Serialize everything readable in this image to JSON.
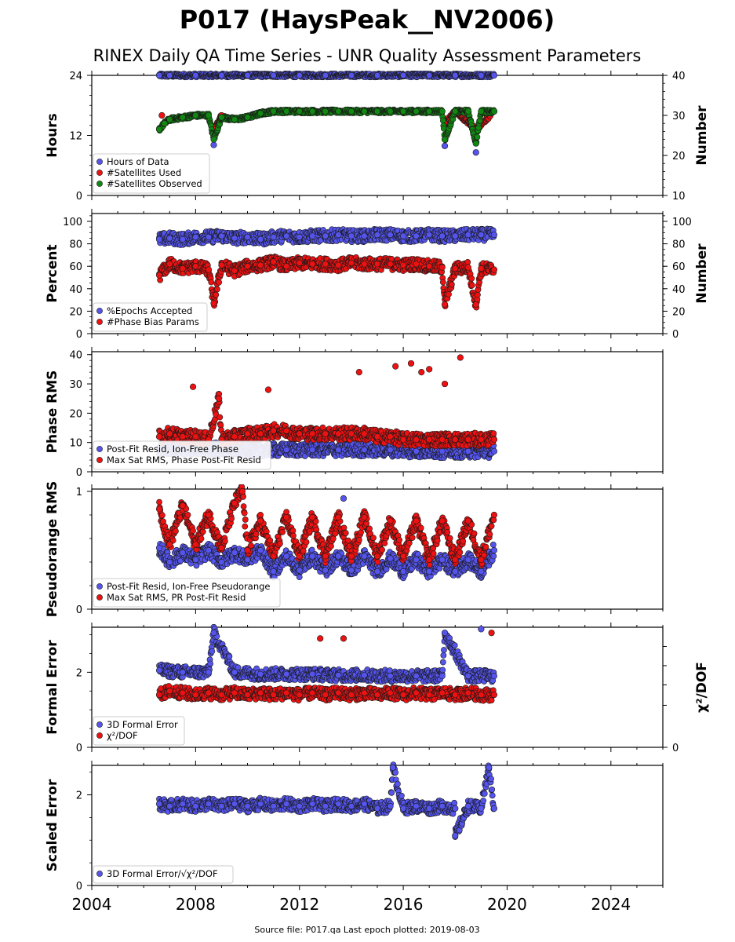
{
  "title": "P017 (HaysPeak__NV2006)",
  "subtitle": "RINEX Daily QA Time Series - UNR Quality Assessment Parameters",
  "source_note": "Source file: P017.qa Last epoch plotted: 2019-08-03",
  "colors": {
    "blue": "#5555ee",
    "red": "#ee1111",
    "green": "#118811",
    "edge": "#1a1a1a"
  },
  "chart_data": [
    {
      "type": "scatter",
      "ylabel": "Hours",
      "ylabel_right": "Number",
      "xlim": [
        2004,
        2026
      ],
      "ylim": [
        0,
        24
      ],
      "ylim_right": [
        10,
        40
      ],
      "yticks": [
        {
          "v": 0,
          "label": "0"
        },
        {
          "v": 12,
          "label": "12"
        },
        {
          "v": 24,
          "label": "24"
        }
      ],
      "yticks_right": [
        {
          "v": 10,
          "label": "10"
        },
        {
          "v": 20,
          "label": "20"
        },
        {
          "v": 30,
          "label": "30"
        },
        {
          "v": 40,
          "label": "40"
        }
      ],
      "legend_position": "lower-left",
      "series": [
        {
          "name": "Hours of Data",
          "color": "blue",
          "axis": "left",
          "x": [
            2006.6,
            2007.0,
            2008.0,
            2009.0,
            2010.0,
            2011.0,
            2012.0,
            2013.0,
            2014.0,
            2015.0,
            2016.0,
            2017.0,
            2018.0,
            2019.0,
            2019.5,
            2008.7,
            2017.6,
            2018.8
          ],
          "y": [
            24,
            24,
            24,
            24,
            24,
            24,
            24,
            24,
            24,
            24,
            24,
            24,
            24,
            24,
            24,
            10.1,
            9.9,
            8.6
          ]
        },
        {
          "name": "#Satellites Used",
          "color": "red",
          "axis": "right",
          "x": [
            2006.7,
            2009.0,
            2012.0,
            2015.0,
            2018.0,
            2019.5,
            2008.7,
            2017.6,
            2018.8
          ],
          "y": [
            30,
            30,
            31,
            31,
            31,
            31,
            26.5,
            28.0,
            26.5
          ]
        },
        {
          "name": "#Satellites Observed",
          "color": "green",
          "axis": "right",
          "x": [
            2006.6,
            2006.8,
            2007.0,
            2007.5,
            2008.0,
            2008.5,
            2009.0,
            2009.5,
            2010.0,
            2010.5,
            2011.0,
            2011.5,
            2012.0,
            2012.5,
            2013.0,
            2013.5,
            2014.0,
            2014.5,
            2015.0,
            2015.5,
            2016.0,
            2016.5,
            2017.0,
            2017.5,
            2018.0,
            2018.5,
            2019.0,
            2019.5,
            2008.7,
            2017.6,
            2018.8
          ],
          "y": [
            26.5,
            28.0,
            29.0,
            29.5,
            30.0,
            30.0,
            29.5,
            29.0,
            29.5,
            30.5,
            31.0,
            31.0,
            31.0,
            31.0,
            31.0,
            31.0,
            31.0,
            31.0,
            31.0,
            31.0,
            31.0,
            31.0,
            31.0,
            31.0,
            31.0,
            31.0,
            31.0,
            31.0,
            24.0,
            24.0,
            23.0
          ]
        }
      ]
    },
    {
      "type": "scatter",
      "ylabel": "Percent",
      "ylabel_right": "Number",
      "xlim": [
        2004,
        2026
      ],
      "ylim": [
        0,
        107
      ],
      "yticks": [
        {
          "v": 0,
          "label": "0"
        },
        {
          "v": 20,
          "label": "20"
        },
        {
          "v": 40,
          "label": "40"
        },
        {
          "v": 60,
          "label": "60"
        },
        {
          "v": 80,
          "label": "80"
        },
        {
          "v": 100,
          "label": "100"
        }
      ],
      "yticks_right": [
        {
          "v": 0,
          "label": "0"
        },
        {
          "v": 20,
          "label": "20"
        },
        {
          "v": 40,
          "label": "40"
        },
        {
          "v": 60,
          "label": "60"
        },
        {
          "v": 80,
          "label": "80"
        },
        {
          "v": 100,
          "label": "100"
        }
      ],
      "legend_position": "lower-left",
      "series": [
        {
          "name": "%Epochs Accepted",
          "color": "blue",
          "axis": "left",
          "x": [
            2006.6,
            2007.0,
            2007.5,
            2008.0,
            2008.5,
            2009.0,
            2009.5,
            2010.0,
            2010.5,
            2011.0,
            2011.5,
            2012.0,
            2012.5,
            2013.0,
            2013.5,
            2014.0,
            2014.5,
            2015.0,
            2015.5,
            2016.0,
            2016.5,
            2017.0,
            2017.5,
            2018.0,
            2018.5,
            2019.0,
            2019.5
          ],
          "y": [
            84,
            85,
            84,
            86,
            86,
            87,
            85,
            86,
            84,
            86,
            87,
            86,
            87,
            87,
            88,
            87,
            87,
            88,
            88,
            87,
            87,
            88,
            87,
            87,
            88,
            88,
            88
          ]
        },
        {
          "name": "#Phase Bias Params",
          "color": "red",
          "axis": "right",
          "x": [
            2006.6,
            2007.0,
            2007.5,
            2008.0,
            2008.5,
            2009.0,
            2009.5,
            2010.0,
            2010.5,
            2011.0,
            2011.5,
            2012.0,
            2012.5,
            2013.0,
            2013.5,
            2014.0,
            2014.5,
            2015.0,
            2015.5,
            2016.0,
            2016.5,
            2017.0,
            2017.5,
            2018.0,
            2018.5,
            2019.0,
            2019.5,
            2008.7,
            2017.6,
            2018.8
          ],
          "y": [
            52,
            62,
            58,
            60,
            57,
            61,
            56,
            60,
            61,
            64,
            60,
            63,
            62,
            62,
            61,
            63,
            62,
            62,
            62,
            61,
            62,
            60,
            59,
            58,
            59,
            58,
            57,
            27,
            26,
            26
          ]
        }
      ]
    },
    {
      "type": "scatter",
      "ylabel": "Phase RMS",
      "xlim": [
        2004,
        2026
      ],
      "ylim": [
        0,
        41
      ],
      "yticks": [
        {
          "v": 0,
          "label": "0"
        },
        {
          "v": 10,
          "label": "10"
        },
        {
          "v": 20,
          "label": "20"
        },
        {
          "v": 30,
          "label": "30"
        },
        {
          "v": 40,
          "label": "40"
        }
      ],
      "legend_position": "lower-left",
      "series": [
        {
          "name": "Post-Fit Resid, Ion-Free Phase",
          "color": "blue",
          "axis": "left",
          "x": [
            2006.6,
            2007.5,
            2008.5,
            2009.5,
            2010.5,
            2011.5,
            2012.5,
            2013.5,
            2014.5,
            2015.5,
            2016.5,
            2017.5,
            2018.5,
            2019.5
          ],
          "y": [
            8,
            8,
            8,
            7.5,
            7.5,
            7.5,
            7.5,
            7.5,
            7.5,
            7.5,
            7,
            7,
            7,
            7
          ]
        },
        {
          "name": "Max Sat RMS, Phase Post-Fit Resid",
          "color": "red",
          "axis": "left",
          "x": [
            2006.6,
            2007.0,
            2007.5,
            2008.0,
            2008.5,
            2009.0,
            2009.5,
            2010.0,
            2010.5,
            2011.0,
            2011.5,
            2012.0,
            2012.5,
            2013.0,
            2013.5,
            2014.0,
            2014.5,
            2015.0,
            2015.5,
            2016.0,
            2016.5,
            2017.0,
            2017.5,
            2018.0,
            2018.5,
            2019.0,
            2019.5,
            2007.9,
            2008.9,
            2010.8,
            2014.3,
            2015.7,
            2016.3,
            2016.7,
            2017.0,
            2017.6,
            2018.2
          ],
          "y": [
            12,
            13,
            12,
            12,
            11,
            11,
            12,
            13,
            13,
            14,
            14,
            13,
            13,
            13,
            13,
            13,
            13,
            12,
            12,
            11,
            11,
            11,
            11,
            11,
            11,
            11,
            11,
            29,
            25,
            28,
            34,
            36,
            37,
            34,
            35,
            30,
            39
          ]
        }
      ]
    },
    {
      "type": "scatter",
      "ylabel": "Pseudorange RMS",
      "xlim": [
        2004,
        2026
      ],
      "ylim": [
        0,
        1.02
      ],
      "yticks": [
        {
          "v": 0,
          "label": "0"
        },
        {
          "v": 1,
          "label": "1"
        }
      ],
      "legend_position": "lower-left",
      "series": [
        {
          "name": "Post-Fit Resid, Ion-Free Pseudorange",
          "color": "blue",
          "axis": "left",
          "x": [
            2006.6,
            2007.0,
            2007.5,
            2008.0,
            2008.5,
            2009.0,
            2009.5,
            2010.0,
            2010.5,
            2011.0,
            2011.5,
            2012.0,
            2012.5,
            2013.0,
            2013.5,
            2014.0,
            2014.5,
            2015.0,
            2015.5,
            2016.0,
            2016.5,
            2017.0,
            2017.5,
            2018.0,
            2018.5,
            2019.0,
            2019.5,
            2013.7
          ],
          "y": [
            0.52,
            0.4,
            0.48,
            0.42,
            0.5,
            0.4,
            0.48,
            0.42,
            0.5,
            0.32,
            0.45,
            0.33,
            0.45,
            0.33,
            0.45,
            0.33,
            0.45,
            0.32,
            0.43,
            0.32,
            0.42,
            0.32,
            0.42,
            0.32,
            0.42,
            0.32,
            0.5,
            0.94
          ]
        },
        {
          "name": "Max Sat RMS, PR Post-Fit Resid",
          "color": "red",
          "axis": "left",
          "x": [
            2006.6,
            2007.0,
            2007.5,
            2008.0,
            2008.5,
            2009.0,
            2009.5,
            2010.0,
            2010.5,
            2011.0,
            2011.5,
            2012.0,
            2012.5,
            2013.0,
            2013.5,
            2014.0,
            2014.5,
            2015.0,
            2015.5,
            2016.0,
            2016.5,
            2017.0,
            2017.5,
            2018.0,
            2018.5,
            2019.0,
            2019.5,
            2009.8
          ],
          "y": [
            0.85,
            0.55,
            0.88,
            0.55,
            0.8,
            0.52,
            0.9,
            0.5,
            0.75,
            0.45,
            0.78,
            0.45,
            0.78,
            0.45,
            0.78,
            0.45,
            0.78,
            0.45,
            0.75,
            0.45,
            0.75,
            0.42,
            0.75,
            0.42,
            0.75,
            0.42,
            0.8,
            1.0
          ]
        }
      ]
    },
    {
      "type": "scatter",
      "ylabel": "Formal Error",
      "ylabel_right": "χ²/DOF",
      "xlim": [
        2004,
        2026
      ],
      "ylim": [
        0,
        3.2
      ],
      "yticks": [
        {
          "v": 0,
          "label": "0"
        },
        {
          "v": 2,
          "label": "2"
        }
      ],
      "yticks_right": [
        {
          "v": 0,
          "label": "0"
        }
      ],
      "legend_position": "lower-left",
      "series": [
        {
          "name": "3D Formal Error",
          "color": "blue",
          "axis": "left",
          "x": [
            2006.6,
            2007.5,
            2008.5,
            2009.5,
            2010.5,
            2011.5,
            2012.5,
            2013.5,
            2014.5,
            2015.5,
            2016.5,
            2017.5,
            2018.5,
            2019.5,
            2008.7,
            2017.6,
            2019.0
          ],
          "y": [
            2.05,
            2.0,
            2.0,
            2.0,
            1.95,
            1.95,
            1.95,
            1.92,
            1.92,
            1.9,
            1.9,
            1.9,
            1.9,
            1.9,
            3.05,
            3.05,
            3.15
          ]
        },
        {
          "name": "χ²/DOF",
          "color": "red",
          "axis": "left",
          "x": [
            2006.6,
            2007.0,
            2007.5,
            2008.0,
            2008.5,
            2009.0,
            2009.5,
            2010.0,
            2010.5,
            2011.0,
            2011.5,
            2012.0,
            2012.5,
            2013.0,
            2013.5,
            2014.0,
            2014.5,
            2015.0,
            2015.5,
            2016.0,
            2016.5,
            2017.0,
            2017.5,
            2018.0,
            2018.5,
            2019.0,
            2019.5,
            2012.8,
            2013.7,
            2019.4
          ],
          "y": [
            1.4,
            1.5,
            1.45,
            1.4,
            1.45,
            1.4,
            1.45,
            1.4,
            1.45,
            1.4,
            1.45,
            1.4,
            1.45,
            1.4,
            1.45,
            1.4,
            1.45,
            1.4,
            1.45,
            1.4,
            1.45,
            1.4,
            1.45,
            1.4,
            1.45,
            1.4,
            1.4,
            2.9,
            2.9,
            3.05
          ]
        }
      ]
    },
    {
      "type": "scatter",
      "ylabel": "Scaled Error",
      "xlim": [
        2004,
        2026
      ],
      "ylim": [
        0,
        2.65
      ],
      "yticks": [
        {
          "v": 0,
          "label": "0"
        },
        {
          "v": 2,
          "label": "2"
        }
      ],
      "xticks": [
        {
          "v": 2004,
          "label": "2004"
        },
        {
          "v": 2008,
          "label": "2008"
        },
        {
          "v": 2012,
          "label": "2012"
        },
        {
          "v": 2016,
          "label": "2016"
        },
        {
          "v": 2020,
          "label": "2020"
        },
        {
          "v": 2024,
          "label": "2024"
        }
      ],
      "legend_position": "lower-left",
      "series": [
        {
          "name": "3D Formal Error/√χ²/DOF",
          "color": "blue",
          "axis": "left",
          "x": [
            2006.6,
            2007.0,
            2007.5,
            2008.0,
            2008.5,
            2009.0,
            2009.5,
            2010.0,
            2010.5,
            2011.0,
            2011.5,
            2012.0,
            2012.5,
            2013.0,
            2013.5,
            2014.0,
            2014.5,
            2015.0,
            2015.5,
            2016.0,
            2016.5,
            2017.0,
            2017.5,
            2018.0,
            2018.5,
            2019.0,
            2019.5,
            2015.6,
            2019.3,
            2018.0
          ],
          "y": [
            1.8,
            1.75,
            1.8,
            1.75,
            1.8,
            1.75,
            1.8,
            1.75,
            1.8,
            1.75,
            1.8,
            1.75,
            1.8,
            1.75,
            1.8,
            1.75,
            1.8,
            1.7,
            1.75,
            1.7,
            1.75,
            1.7,
            1.75,
            1.7,
            1.75,
            1.7,
            1.7,
            2.6,
            2.6,
            1.1
          ]
        }
      ]
    }
  ]
}
